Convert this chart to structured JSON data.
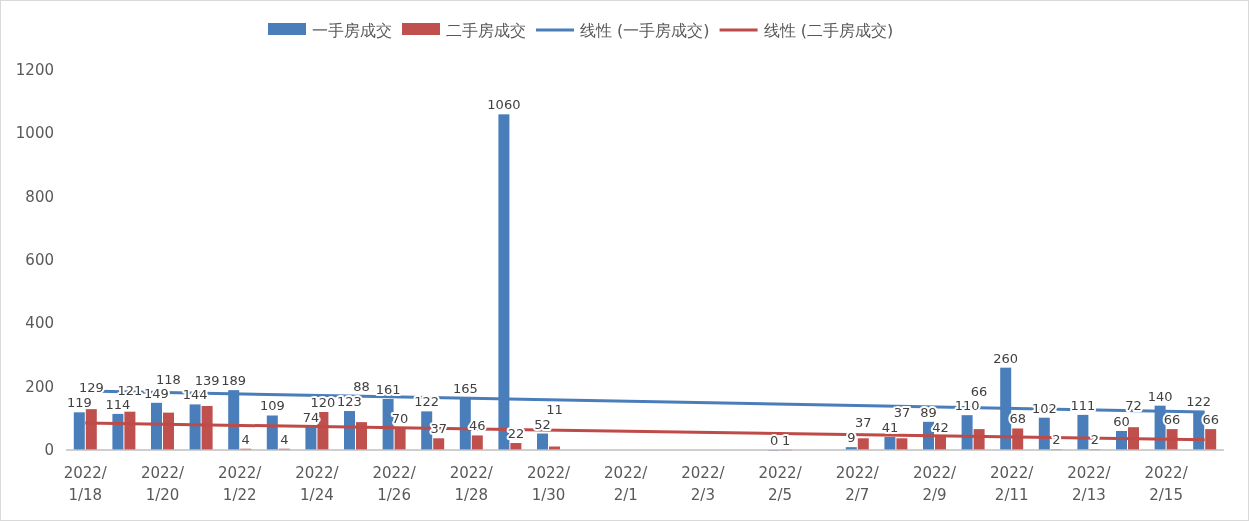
{
  "chart_data": {
    "type": "bar",
    "categories": [
      "2022/1/18",
      null,
      "2022/1/20",
      null,
      "2022/1/22",
      null,
      "2022/1/24",
      null,
      "2022/1/26",
      null,
      "2022/1/28",
      null,
      "2022/1/30",
      null,
      "2022/2/1",
      null,
      "2022/2/3",
      null,
      "2022/2/5",
      null,
      "2022/2/7",
      null,
      "2022/2/9",
      null,
      "2022/2/11",
      null,
      "2022/2/13",
      null,
      "2022/2/15",
      null
    ],
    "series": [
      {
        "name": "一手房成交",
        "color": "#4a7ebb",
        "values": [
          119,
          114,
          149,
          144,
          189,
          109,
          74,
          123,
          161,
          122,
          165,
          1060,
          52,
          null,
          null,
          null,
          null,
          null,
          0,
          null,
          9,
          41,
          89,
          110,
          260,
          102,
          111,
          60,
          140,
          122
        ],
        "value_labels": [
          "119",
          "114",
          "149",
          "144",
          "189",
          "109",
          "74",
          "123",
          "161",
          "122",
          "165",
          "1060",
          "52",
          null,
          null,
          null,
          null,
          null,
          "0",
          null,
          "9",
          "41",
          "89",
          "110",
          "260",
          "102",
          "111",
          "60",
          "140",
          "122"
        ]
      },
      {
        "name": "二手房成交",
        "color": "#c0504d",
        "values": [
          129,
          121,
          118,
          139,
          4,
          4,
          120,
          88,
          70,
          37,
          46,
          22,
          11,
          null,
          null,
          null,
          null,
          null,
          1,
          null,
          37,
          37,
          42,
          66,
          68,
          2,
          2,
          72,
          66,
          66
        ],
        "value_labels": [
          "129",
          "121",
          "118",
          "139",
          "4",
          "4",
          "120",
          "88",
          "70",
          "37",
          "46",
          "22",
          "11",
          null,
          null,
          null,
          null,
          null,
          "1",
          null,
          "37",
          "37",
          "42",
          "66",
          "68",
          "2",
          "2",
          "72",
          "66",
          "66"
        ]
      },
      {
        "name": "线性 (一手房成交)",
        "type": "line",
        "color": "#4a7ebb",
        "values": [
          186,
          null,
          null,
          null,
          null,
          null,
          null,
          null,
          null,
          null,
          null,
          null,
          null,
          null,
          null,
          null,
          null,
          null,
          null,
          null,
          null,
          null,
          null,
          null,
          null,
          null,
          null,
          null,
          null,
          120
        ]
      },
      {
        "name": "线性 (二手房成交)",
        "type": "line",
        "color": "#be4b48",
        "values": [
          85,
          null,
          null,
          null,
          null,
          null,
          null,
          null,
          null,
          null,
          null,
          null,
          null,
          null,
          null,
          null,
          null,
          null,
          null,
          null,
          null,
          null,
          null,
          null,
          null,
          null,
          null,
          null,
          null,
          32
        ]
      }
    ],
    "ylim": [
      0,
      1200
    ],
    "yticks": [
      0,
      200,
      400,
      600,
      800,
      1000,
      1200
    ],
    "legend": "top",
    "grid": false
  }
}
